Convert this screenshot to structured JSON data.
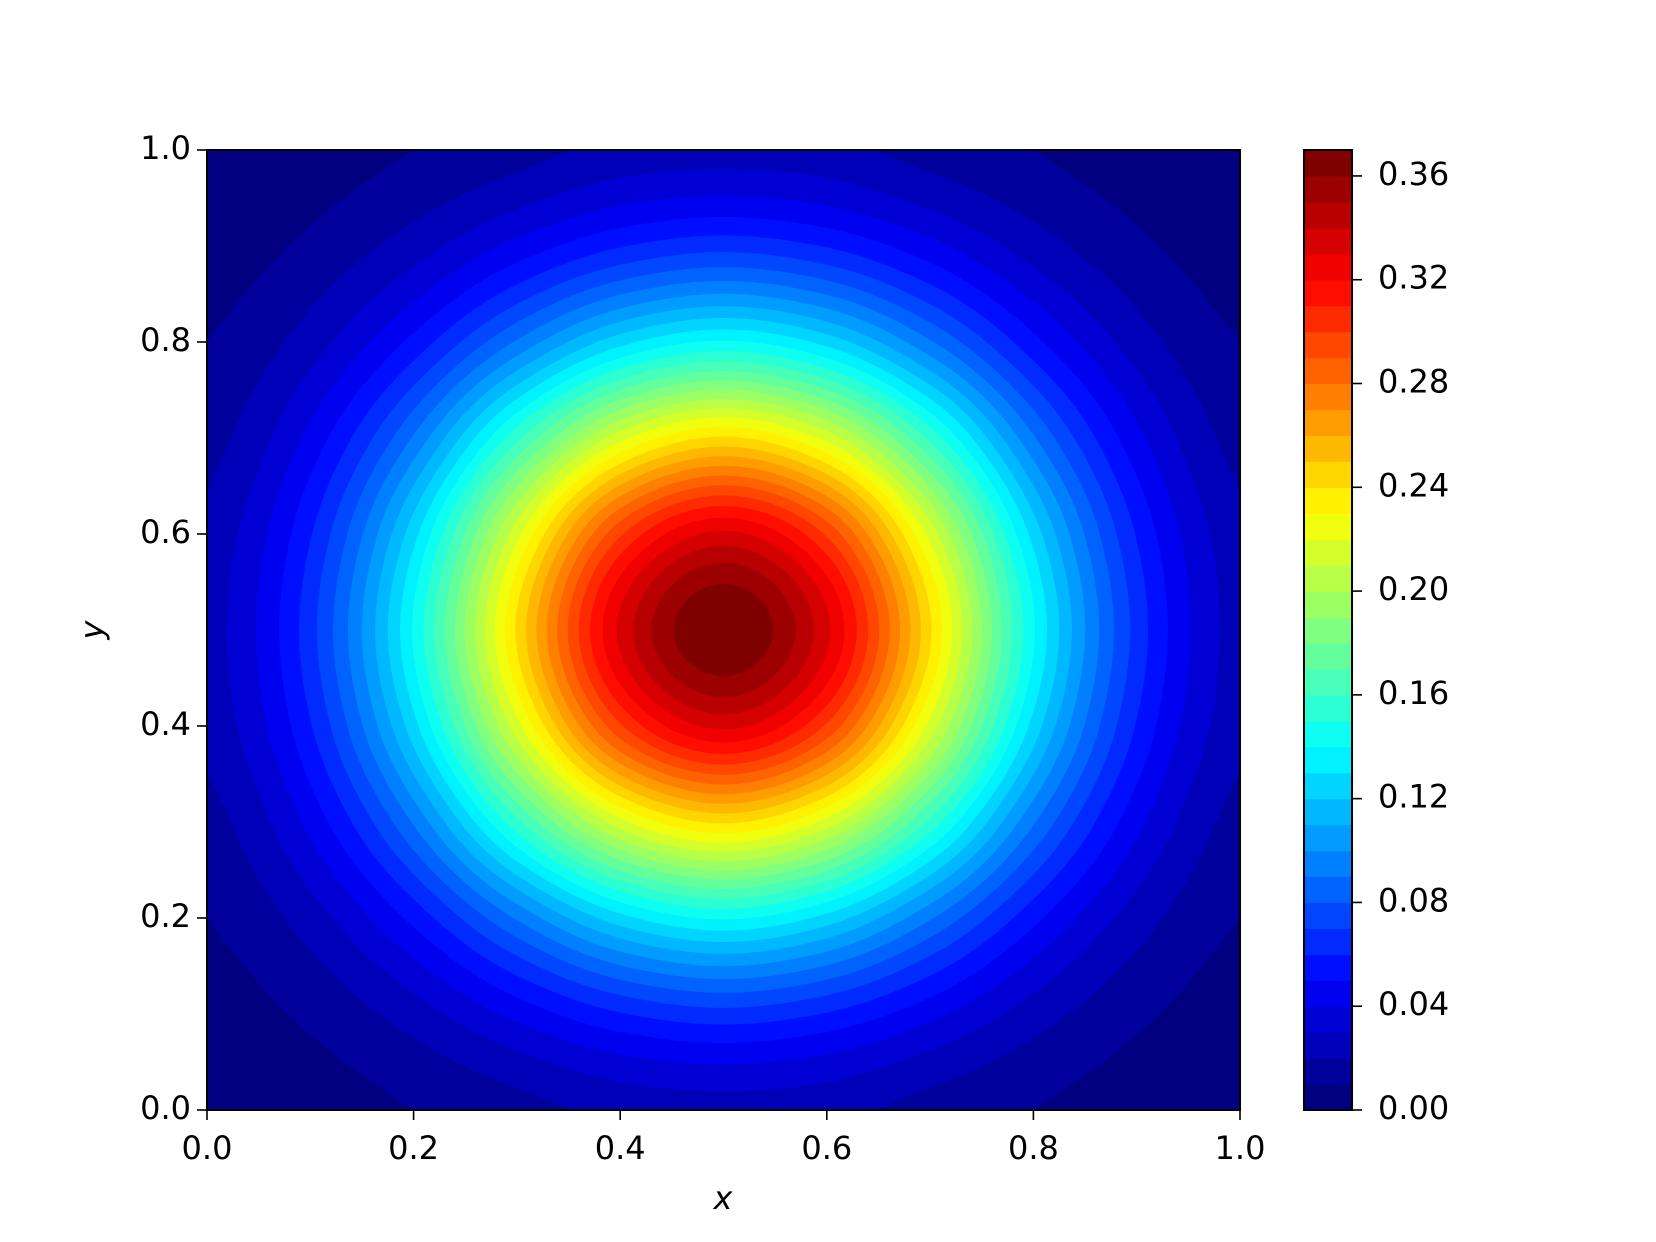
{
  "chart_data": {
    "type": "contourf",
    "xlabel": "x",
    "ylabel": "y",
    "x": [
      0,
      0.1,
      0.2,
      0.3,
      0.4,
      0.5,
      0.6,
      0.7,
      0.8,
      0.9,
      1
    ],
    "y": [
      0,
      0.1,
      0.2,
      0.3,
      0.4,
      0.5,
      0.6,
      0.7,
      0.8,
      0.9,
      1
    ],
    "z": [
      [
        0.002,
        0.005,
        0.01,
        0.016,
        0.023,
        0.025,
        0.023,
        0.016,
        0.01,
        0.005,
        0.002
      ],
      [
        0.005,
        0.012,
        0.025,
        0.043,
        0.059,
        0.066,
        0.059,
        0.043,
        0.025,
        0.012,
        0.005
      ],
      [
        0.01,
        0.025,
        0.053,
        0.091,
        0.126,
        0.141,
        0.126,
        0.091,
        0.053,
        0.025,
        0.01
      ],
      [
        0.016,
        0.043,
        0.091,
        0.157,
        0.216,
        0.241,
        0.216,
        0.157,
        0.091,
        0.043,
        0.016
      ],
      [
        0.023,
        0.059,
        0.126,
        0.216,
        0.298,
        0.332,
        0.298,
        0.216,
        0.126,
        0.059,
        0.023
      ],
      [
        0.025,
        0.066,
        0.141,
        0.241,
        0.332,
        0.37,
        0.332,
        0.241,
        0.141,
        0.066,
        0.025
      ],
      [
        0.023,
        0.059,
        0.126,
        0.216,
        0.298,
        0.332,
        0.298,
        0.216,
        0.126,
        0.059,
        0.023
      ],
      [
        0.016,
        0.043,
        0.091,
        0.157,
        0.216,
        0.241,
        0.216,
        0.157,
        0.091,
        0.043,
        0.016
      ],
      [
        0.01,
        0.025,
        0.053,
        0.091,
        0.126,
        0.141,
        0.126,
        0.091,
        0.053,
        0.025,
        0.01
      ],
      [
        0.005,
        0.012,
        0.025,
        0.043,
        0.059,
        0.066,
        0.059,
        0.043,
        0.025,
        0.012,
        0.005
      ],
      [
        0.002,
        0.005,
        0.01,
        0.016,
        0.023,
        0.025,
        0.023,
        0.016,
        0.01,
        0.005,
        0.002
      ]
    ],
    "levels": [
      0,
      0.01,
      0.02,
      0.03,
      0.04,
      0.05,
      0.06,
      0.07,
      0.08,
      0.09,
      0.1,
      0.11,
      0.12,
      0.13,
      0.14,
      0.15,
      0.16,
      0.17,
      0.18,
      0.19,
      0.2,
      0.21,
      0.22,
      0.23,
      0.24,
      0.25,
      0.26,
      0.27,
      0.28,
      0.29,
      0.3,
      0.31,
      0.32,
      0.33,
      0.34,
      0.35,
      0.36,
      0.37
    ],
    "colormap": "jet",
    "xlim": [
      0,
      1
    ],
    "ylim": [
      0,
      1
    ],
    "xticks": [
      {
        "value": 0,
        "label": "0.0"
      },
      0.2,
      0.4,
      0.6,
      0.8,
      {
        "value": 1,
        "label": "1.0"
      }
    ],
    "yticks": [
      {
        "value": 0,
        "label": "0.0"
      },
      0.2,
      0.4,
      0.6,
      0.8,
      {
        "value": 1,
        "label": "1.0"
      }
    ],
    "colorbar_ticks": [
      {
        "value": 0,
        "label": "0.00"
      },
      0.04,
      0.08,
      0.12,
      0.16,
      {
        "value": 0.2,
        "label": "0.20"
      },
      0.24,
      0.28,
      0.32,
      0.36
    ]
  }
}
